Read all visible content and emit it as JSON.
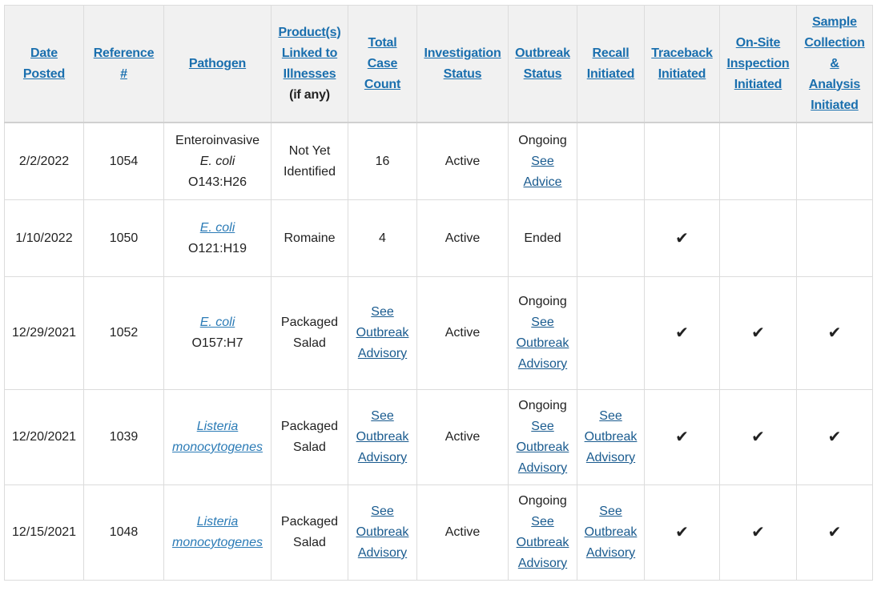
{
  "headers": {
    "date": [
      "Date",
      "Posted"
    ],
    "reference": [
      "Reference",
      "#"
    ],
    "pathogen": [
      "Pathogen"
    ],
    "product": [
      "Product(s)",
      "Linked to",
      "Illnesses"
    ],
    "product_note": "(if any)",
    "total": [
      "Total",
      "Case",
      "Count"
    ],
    "investigation": [
      "Investigation",
      "Status"
    ],
    "outbreak": [
      "Outbreak",
      "Status"
    ],
    "recall": [
      "Recall",
      "Initiated"
    ],
    "traceback": [
      "Traceback",
      "Initiated"
    ],
    "onsite": [
      "On-Site",
      "Inspection",
      "Initiated"
    ],
    "sample": [
      "Sample",
      "Collection",
      "&",
      "Analysis",
      "Initiated"
    ]
  },
  "rows": [
    {
      "date": "2/2/2022",
      "reference": "1054",
      "pathogen": [
        "Enteroinvasive",
        "E. coli",
        "O143:H26"
      ],
      "product": [
        "Not Yet",
        "Identified"
      ],
      "total": "16",
      "investigation": "Active",
      "outbreak_text": "Ongoing",
      "outbreak_link": [
        "See",
        "Advice"
      ],
      "recall": "",
      "traceback": "",
      "onsite": "",
      "sample": ""
    },
    {
      "date": "1/10/2022",
      "reference": "1050",
      "pathogen_link": "E. coli",
      "pathogen_strain": "O121:H19",
      "product": "Romaine",
      "total": "4",
      "investigation": "Active",
      "outbreak_text": "Ended",
      "recall": "",
      "traceback": "✔",
      "onsite": "",
      "sample": ""
    },
    {
      "date": "12/29/2021",
      "reference": "1052",
      "pathogen_link": "E. coli",
      "pathogen_strain": "O157:H7",
      "product": [
        "Packaged",
        "Salad"
      ],
      "total_link": [
        "See",
        "Outbreak",
        "Advisory"
      ],
      "investigation": "Active",
      "outbreak_text": "Ongoing",
      "outbreak_link": [
        "See",
        "Outbreak",
        "Advisory"
      ],
      "recall": "",
      "traceback": "✔",
      "onsite": "✔",
      "sample": "✔"
    },
    {
      "date": "12/20/2021",
      "reference": "1039",
      "pathogen_link": [
        "Listeria",
        "monocytogenes"
      ],
      "product": [
        "Packaged",
        "Salad"
      ],
      "total_link": [
        "See",
        "Outbreak",
        "Advisory"
      ],
      "investigation": "Active",
      "outbreak_text": "Ongoing",
      "outbreak_link": [
        "See",
        "Outbreak",
        "Advisory"
      ],
      "recall_link": [
        "See",
        "Outbreak",
        "Advisory"
      ],
      "traceback": "✔",
      "onsite": "✔",
      "sample": "✔"
    },
    {
      "date": "12/15/2021",
      "reference": "1048",
      "pathogen_link": [
        "Listeria",
        "monocytogenes"
      ],
      "product": [
        "Packaged",
        "Salad"
      ],
      "total_link": [
        "See",
        "Outbreak",
        "Advisory"
      ],
      "investigation": "Active",
      "outbreak_text": "Ongoing",
      "outbreak_link": [
        "See",
        "Outbreak",
        "Advisory"
      ],
      "recall_link": [
        "See",
        "Outbreak",
        "Advisory"
      ],
      "traceback": "✔",
      "onsite": "✔",
      "sample": "✔"
    }
  ]
}
